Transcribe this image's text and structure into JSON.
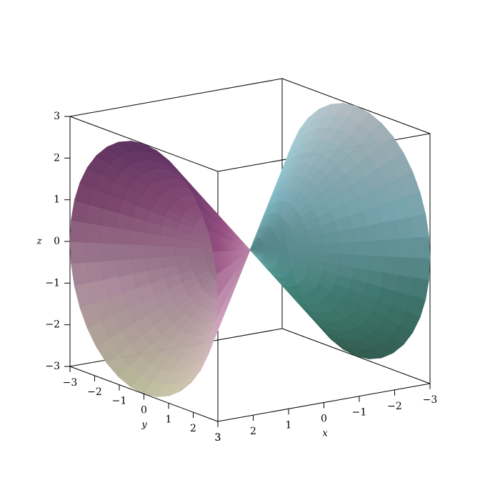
{
  "chart_data": {
    "type": "surface3d",
    "xlabel": "x",
    "ylabel": "y",
    "zlabel": "z",
    "xlim": [
      -3,
      3
    ],
    "ylim": [
      -3,
      3
    ],
    "zlim": [
      -3,
      3
    ],
    "xticks": [
      {
        "value": -3,
        "label": "−3"
      },
      {
        "value": -2,
        "label": "−2"
      },
      {
        "value": -1,
        "label": "−1"
      },
      0,
      1,
      2,
      3
    ],
    "yticks": [
      {
        "value": -3,
        "label": "−3"
      },
      {
        "value": -2,
        "label": "−2"
      },
      {
        "value": -1,
        "label": "−1"
      },
      0,
      1,
      2,
      3
    ],
    "zticks": [
      {
        "value": -3,
        "label": "−3"
      },
      {
        "value": -2,
        "label": "−2"
      },
      {
        "value": -1,
        "label": "−1"
      },
      0,
      1,
      2,
      3
    ]
  }
}
